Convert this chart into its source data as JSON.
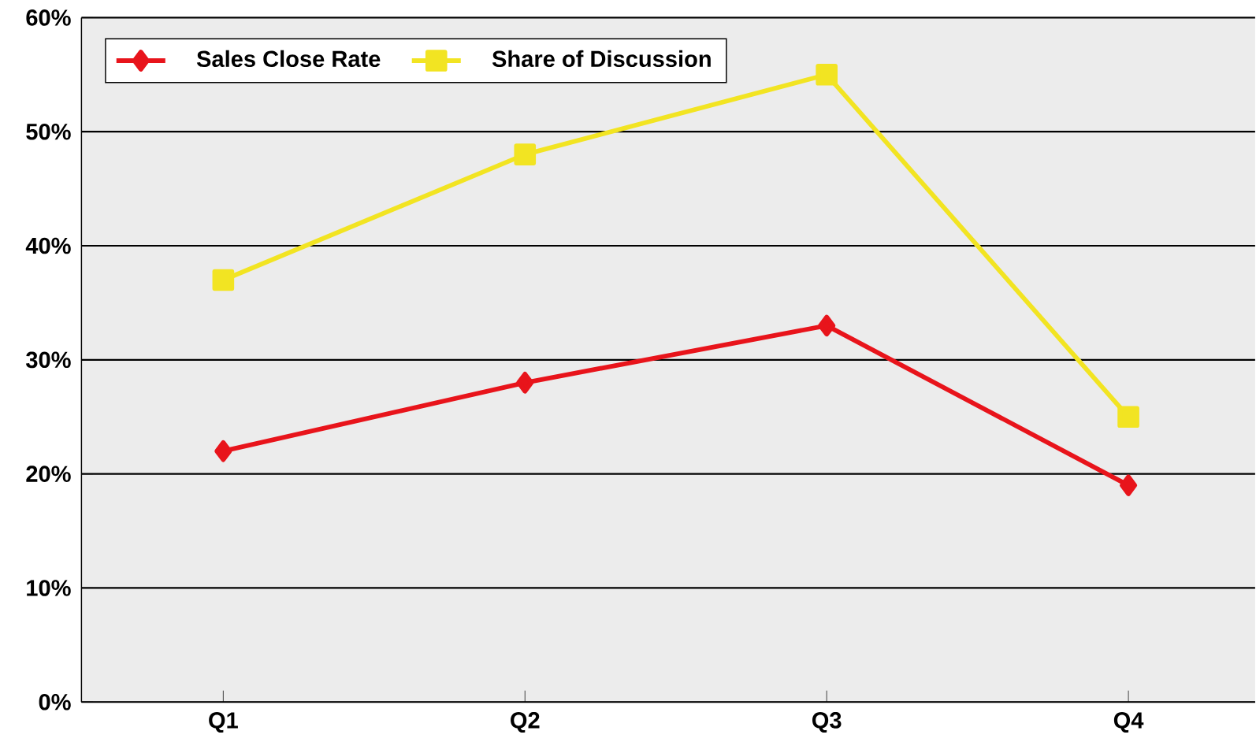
{
  "chart_data": {
    "type": "line",
    "categories": [
      "Q1",
      "Q2",
      "Q3",
      "Q4"
    ],
    "series": [
      {
        "name": "Sales Close Rate",
        "color": "#e8141b",
        "values": [
          22,
          28,
          33,
          19
        ],
        "marker": "diamond"
      },
      {
        "name": "Share of Discussion",
        "color": "#f2e422",
        "values": [
          37,
          48,
          55,
          25
        ],
        "marker": "square"
      }
    ],
    "ylim": [
      0,
      60
    ],
    "yticks": [
      {
        "value": 0,
        "label": "0%"
      },
      {
        "value": 10,
        "label": "10%"
      },
      {
        "value": 20,
        "label": "20%"
      },
      {
        "value": 30,
        "label": "30%"
      },
      {
        "value": 40,
        "label": "40%"
      },
      {
        "value": 50,
        "label": "50%"
      },
      {
        "value": 60,
        "label": "60%"
      }
    ],
    "grid": "y",
    "legend": "top left",
    "line_style": "solid"
  }
}
